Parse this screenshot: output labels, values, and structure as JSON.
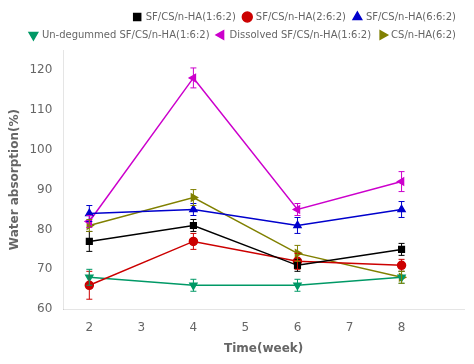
{
  "chart_data": {
    "type": "line",
    "xlabel": "Time(week)",
    "ylabel": "Water absorption(%)",
    "x": [
      2,
      4,
      6,
      8
    ],
    "series": [
      {
        "name": "SF/CS/n-HA(1:6:2)",
        "color": "#000000",
        "marker": "square",
        "values": [
          77,
          81,
          71,
          75
        ],
        "yerr": [
          2.5,
          1.5,
          1.5,
          1.5
        ]
      },
      {
        "name": "SF/CS/n-HA(2:6:2)",
        "color": "#cc0000",
        "marker": "circle",
        "values": [
          66,
          77,
          72,
          71
        ],
        "yerr": [
          3.5,
          2.0,
          2.0,
          1.5
        ]
      },
      {
        "name": "SF/CS/n-HA(6:6:2)",
        "color": "#0000cc",
        "marker": "triangle-up",
        "values": [
          84,
          85,
          81,
          85
        ],
        "yerr": [
          2.0,
          1.5,
          2.0,
          2.0
        ]
      },
      {
        "name": "Un-degummed SF/CS/n-HA(1:6:2)",
        "color": "#009966",
        "marker": "triangle-down",
        "values": [
          68,
          66,
          66,
          68
        ],
        "yerr": [
          2.0,
          1.5,
          1.5,
          1.5
        ]
      },
      {
        "name": "Dissolved SF/CS/n-HA(1:6:2)",
        "color": "#cc00cc",
        "marker": "triangle-left",
        "values": [
          82,
          118,
          85,
          92
        ],
        "yerr": [
          1.5,
          2.5,
          1.5,
          2.5
        ]
      },
      {
        "name": "CS/n-HA(6:2)",
        "color": "#808000",
        "marker": "triangle-right",
        "values": [
          81,
          88,
          74,
          68
        ],
        "yerr": [
          1.5,
          2.0,
          2.0,
          1.5
        ]
      }
    ],
    "xlim": [
      1.5,
      9.2
    ],
    "xticks": [
      2,
      3,
      4,
      5,
      6,
      7,
      8
    ],
    "ylim": [
      60,
      125
    ],
    "yticks": [
      60,
      70,
      80,
      90,
      100,
      110,
      120
    ],
    "grid": false,
    "legend": "upper right"
  }
}
